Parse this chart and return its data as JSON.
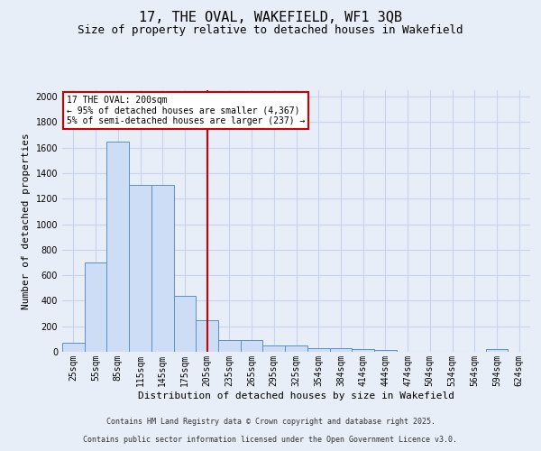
{
  "title": "17, THE OVAL, WAKEFIELD, WF1 3QB",
  "subtitle": "Size of property relative to detached houses in Wakefield",
  "xlabel": "Distribution of detached houses by size in Wakefield",
  "ylabel": "Number of detached properties",
  "categories": [
    "25sqm",
    "55sqm",
    "85sqm",
    "115sqm",
    "145sqm",
    "175sqm",
    "205sqm",
    "235sqm",
    "265sqm",
    "295sqm",
    "325sqm",
    "354sqm",
    "384sqm",
    "414sqm",
    "444sqm",
    "474sqm",
    "504sqm",
    "534sqm",
    "564sqm",
    "594sqm",
    "624sqm"
  ],
  "values": [
    70,
    700,
    1650,
    1310,
    1310,
    440,
    250,
    95,
    90,
    50,
    50,
    30,
    25,
    20,
    15,
    0,
    0,
    0,
    0,
    20,
    0
  ],
  "bar_color": "#ccddf5",
  "bar_edge_color": "#5b8fc9",
  "vline_x_index": 6,
  "vline_color": "#cc0000",
  "annotation_title": "17 THE OVAL: 200sqm",
  "annotation_line1": "← 95% of detached houses are smaller (4,367)",
  "annotation_line2": "5% of semi-detached houses are larger (237) →",
  "annotation_box_color": "#ffffff",
  "annotation_box_edge": "#cc0000",
  "ylim": [
    0,
    2050
  ],
  "yticks": [
    0,
    200,
    400,
    600,
    800,
    1000,
    1200,
    1400,
    1600,
    1800,
    2000
  ],
  "grid_color": "#c8d4ec",
  "plot_bg_color": "#e8eef8",
  "fig_bg_color": "#e8eef8",
  "footer_line1": "Contains HM Land Registry data © Crown copyright and database right 2025.",
  "footer_line2": "Contains public sector information licensed under the Open Government Licence v3.0.",
  "title_fontsize": 11,
  "subtitle_fontsize": 9,
  "axis_label_fontsize": 8,
  "tick_fontsize": 7,
  "footer_fontsize": 6,
  "annotation_fontsize": 7
}
